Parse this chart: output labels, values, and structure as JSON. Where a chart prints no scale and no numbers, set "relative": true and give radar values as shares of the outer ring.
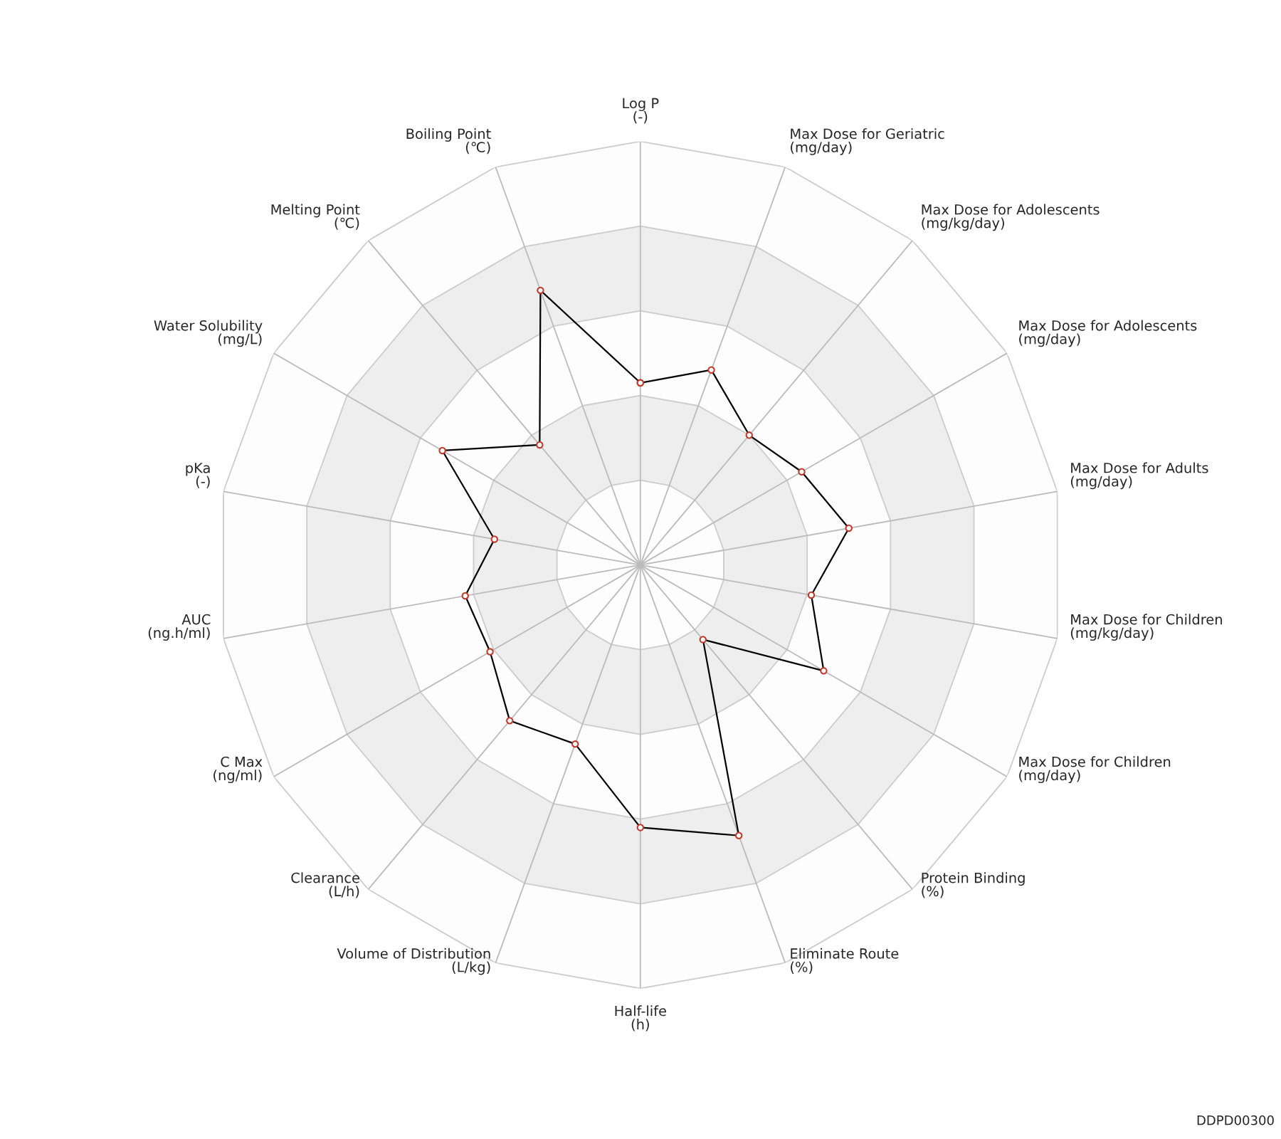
{
  "chart_data": {
    "type": "radar",
    "relative": true,
    "grid": true,
    "marker": "circle",
    "categories": [
      "Log P\n(-)",
      "Max Dose for Geriatric\n(mg/day)",
      "Max Dose for Adolescents\n(mg/kg/day)",
      "Max Dose for Adolescents\n(mg/day)",
      "Max Dose for Adults\n(mg/day)",
      "Max Dose for Children\n(mg/kg/day)",
      "Max Dose for Children\n(mg/day)",
      "Protein Binding\n(%)",
      "Eliminate Route\n(%)",
      "Half-life\n(h)",
      "Volume of Distribution\n(L/kg)",
      "Clearance\n(L/h)",
      "C Max\n(ng/ml)",
      "AUC\n(ng.h/ml)",
      "pKa\n(-)",
      "Water Solubility\n(mg/L)",
      "Melting Point\n(℃)",
      "Boiling Point\n(℃)"
    ],
    "series": [
      {
        "color": "#000000",
        "values": [
          0.43,
          0.49,
          0.4,
          0.44,
          0.5,
          0.41,
          0.5,
          0.23,
          0.68,
          0.62,
          0.45,
          0.48,
          0.41,
          0.42,
          0.35,
          0.54,
          0.37,
          0.69
        ]
      }
    ],
    "annotations": [
      "DDPD00300"
    ]
  }
}
